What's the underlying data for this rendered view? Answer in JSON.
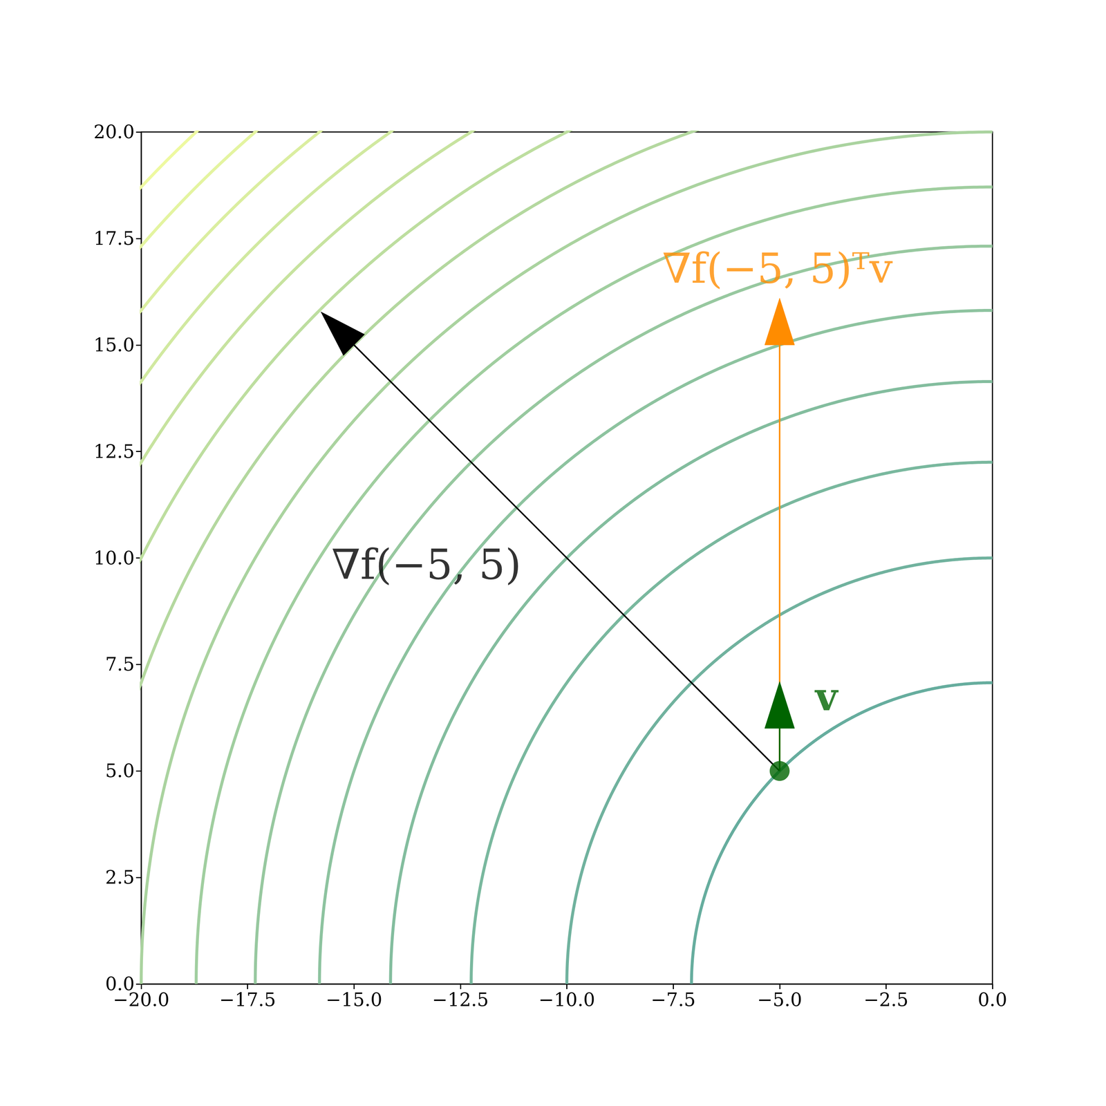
{
  "chart_data": {
    "type": "contour",
    "xlim": [
      -20,
      0
    ],
    "ylim": [
      0,
      20
    ],
    "xticks": [
      {
        "value": -20,
        "label": "−20.0"
      },
      {
        "value": -17.5,
        "label": "−17.5"
      },
      {
        "value": -15,
        "label": "−15.0"
      },
      {
        "value": -12.5,
        "label": "−12.5"
      },
      {
        "value": -10,
        "label": "−10.0"
      },
      {
        "value": -7.5,
        "label": "−7.5"
      },
      {
        "value": -5,
        "label": "−5.0"
      },
      {
        "value": -2.5,
        "label": "−2.5"
      },
      {
        "value": 0,
        "label": "0.0"
      }
    ],
    "yticks": [
      {
        "value": 0,
        "label": "0.0"
      },
      {
        "value": 2.5,
        "label": "2.5"
      },
      {
        "value": 5,
        "label": "5.0"
      },
      {
        "value": 7.5,
        "label": "7.5"
      },
      {
        "value": 10,
        "label": "10.0"
      },
      {
        "value": 12.5,
        "label": "12.5"
      },
      {
        "value": 15,
        "label": "15.0"
      },
      {
        "value": 17.5,
        "label": "17.5"
      },
      {
        "value": 20,
        "label": "20.0"
      }
    ],
    "grid": false,
    "contour_levels": [
      50,
      100,
      150,
      200,
      250,
      300,
      350,
      400,
      450,
      500,
      550,
      600,
      650,
      700,
      750
    ],
    "colors": [
      "#66ad9e",
      "#70b29e",
      "#79b89e",
      "#83bd9e",
      "#8dc39f",
      "#97c89f",
      "#a0ce9f",
      "#aad39f",
      "#b4d89f",
      "#bdde9f",
      "#c7e39f",
      "#d1e9a0",
      "#dbeea0",
      "#e4f4a0",
      "#eef9a0"
    ],
    "point": {
      "x": -5,
      "y": 5,
      "color": "#006400"
    },
    "vectors": [
      {
        "label": "∇f(−5, 5)ᵀv",
        "dx": 0,
        "dy": 10,
        "color": "#ff8c00"
      },
      {
        "label": "∇f(−5, 5)",
        "dx": -10,
        "dy": 10,
        "color": "#000000"
      },
      {
        "label": "v",
        "dx": 0,
        "dy": 1,
        "color": "#006400"
      }
    ]
  }
}
